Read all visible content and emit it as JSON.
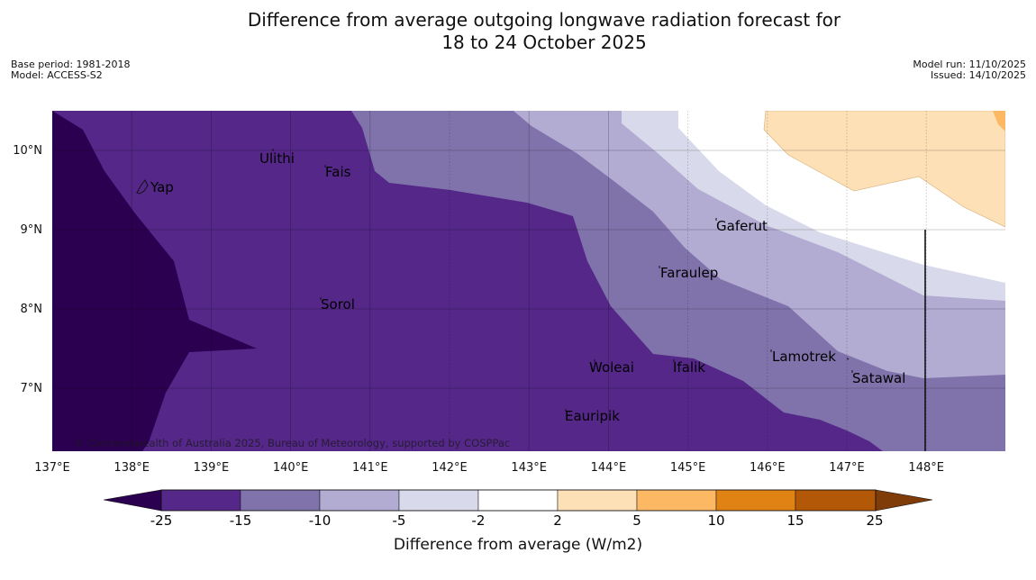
{
  "header": {
    "title_line1": "Difference from average outgoing longwave radiation forecast for",
    "title_line2": "18 to 24 October 2025",
    "base_period": "Base period: 1981-2018",
    "model": "Model: ACCESS-S2",
    "model_run": "Model run: 11/10/2025",
    "issued": "Issued: 14/10/2025"
  },
  "map": {
    "lon_labels": [
      "137°E",
      "138°E",
      "139°E",
      "140°E",
      "141°E",
      "142°E",
      "143°E",
      "144°E",
      "145°E",
      "146°E",
      "147°E",
      "148°E"
    ],
    "lat_labels": [
      "10°N",
      "9°N",
      "8°N",
      "7°N"
    ],
    "places": [
      "Yap",
      "Ulithi",
      "Fais",
      "Gaferut",
      "Faraulep",
      "Sorol",
      "Lamotrek",
      "Woleai",
      "Ifalik",
      "Satawal",
      "Eauripik"
    ],
    "copyright": "© Commonwealth of Australia 2025, Bureau of Meteorology, supported by COSPPac"
  },
  "colorbar": {
    "ticks": [
      "-25",
      "-15",
      "-10",
      "-5",
      "-2",
      "2",
      "5",
      "10",
      "15",
      "25"
    ],
    "label": "Difference from average (W/m2)",
    "colors": [
      "#2c0050",
      "#542788",
      "#8073ac",
      "#b2abd2",
      "#d8daeb",
      "#ffffff",
      "#fee0b6",
      "#fdb863",
      "#e08214",
      "#b35806",
      "#7f3b08"
    ]
  },
  "chart_data": {
    "type": "heatmap",
    "title": "Difference from average outgoing longwave radiation forecast for 18 to 24 October 2025",
    "variable": "Difference from average outgoing longwave radiation",
    "units": "W/m2",
    "x_range": [
      137,
      149
    ],
    "y_range": [
      6.2,
      10.5
    ],
    "levels": [
      -25,
      -15,
      -10,
      -5,
      -2,
      2,
      5,
      10,
      15,
      25
    ]
  }
}
